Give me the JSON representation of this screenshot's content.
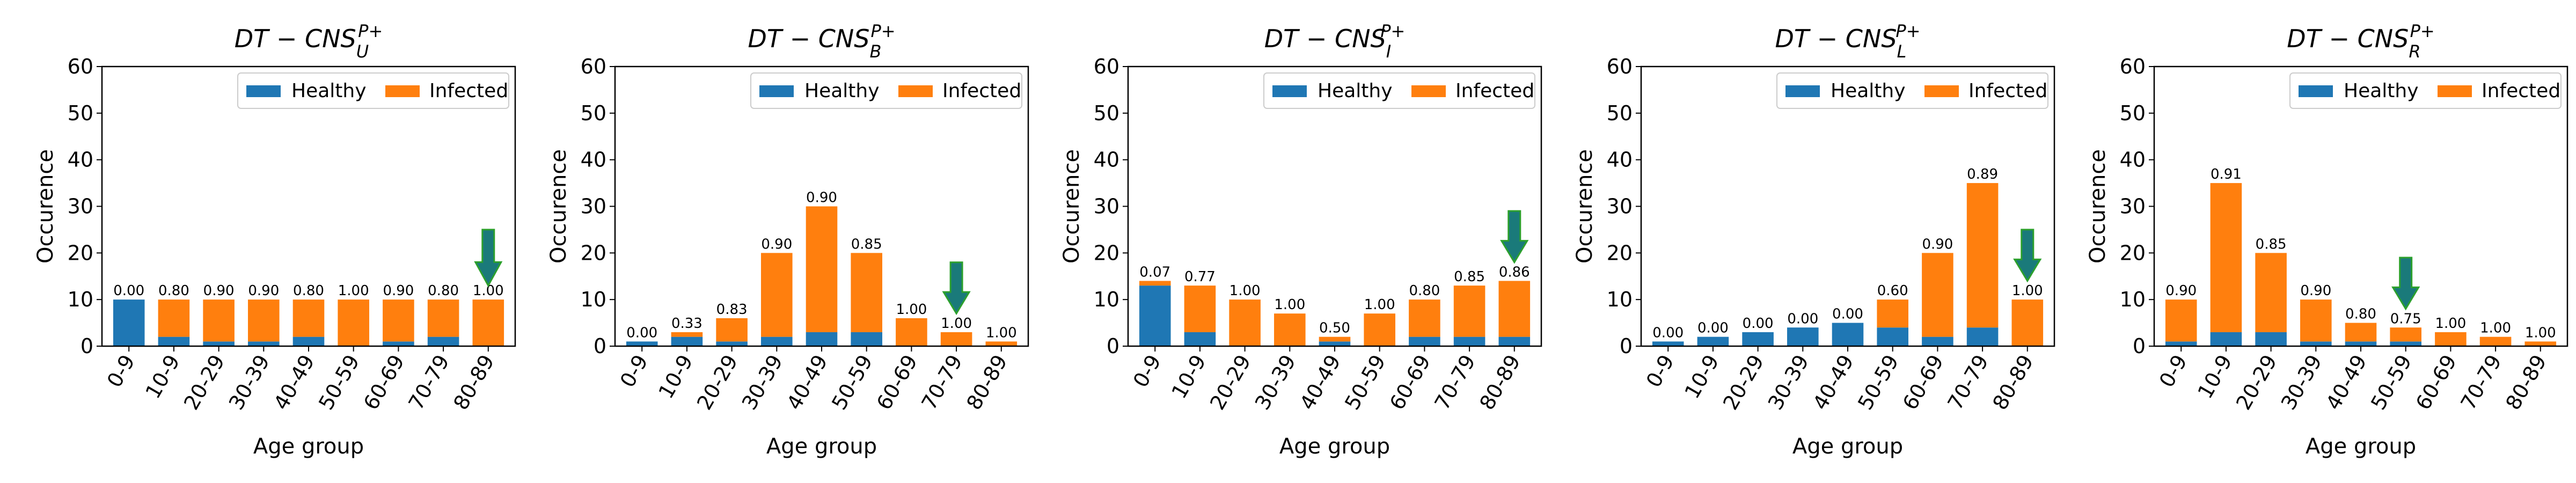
{
  "colors": {
    "healthy": "#1f77b4",
    "infected": "#ff7f0e",
    "arrow_fill": "#1a7a7a",
    "arrow_stroke": "#2ca02c"
  },
  "chart_data": [
    {
      "type": "bar",
      "stacked": true,
      "title_base": "DT − CNS",
      "title_sub": "U",
      "title_sup": "P+",
      "xlabel": "Age group",
      "ylabel": "Occurence",
      "ylim": [
        0,
        60
      ],
      "yticks": [
        0,
        10,
        20,
        30,
        40,
        50,
        60
      ],
      "legend": [
        "Healthy",
        "Infected"
      ],
      "legend_position": "top-right",
      "categories": [
        "0-9",
        "10-9",
        "20-29",
        "30-39",
        "40-49",
        "50-59",
        "60-69",
        "70-79",
        "80-89"
      ],
      "series": [
        {
          "name": "Healthy",
          "values": [
            10,
            2,
            1,
            1,
            2,
            0,
            1,
            2,
            0
          ]
        },
        {
          "name": "Infected",
          "values": [
            0,
            8,
            9,
            9,
            8,
            10,
            9,
            8,
            10
          ]
        }
      ],
      "labels": [
        "0.00",
        "0.80",
        "0.90",
        "0.90",
        "0.80",
        "1.00",
        "0.90",
        "0.80",
        "1.00"
      ],
      "annotation": {
        "type": "arrow",
        "category_index": 8,
        "from_y": 25,
        "to_y": 13
      }
    },
    {
      "type": "bar",
      "stacked": true,
      "title_base": "DT − CNS",
      "title_sub": "B",
      "title_sup": "P+",
      "xlabel": "Age group",
      "ylabel": "Occurence",
      "ylim": [
        0,
        60
      ],
      "yticks": [
        0,
        10,
        20,
        30,
        40,
        50,
        60
      ],
      "legend": [
        "Healthy",
        "Infected"
      ],
      "legend_position": "top-right",
      "categories": [
        "0-9",
        "10-9",
        "20-29",
        "30-39",
        "40-49",
        "50-59",
        "60-69",
        "70-79",
        "80-89"
      ],
      "series": [
        {
          "name": "Healthy",
          "values": [
            1,
            2,
            1,
            2,
            3,
            3,
            0,
            0,
            0
          ]
        },
        {
          "name": "Infected",
          "values": [
            0,
            1,
            5,
            18,
            27,
            17,
            6,
            3,
            1
          ]
        }
      ],
      "labels": [
        "0.00",
        "0.33",
        "0.83",
        "0.90",
        "0.90",
        "0.85",
        "1.00",
        "1.00",
        "1.00"
      ],
      "annotation": {
        "type": "arrow",
        "category_index": 7,
        "from_y": 18,
        "to_y": 7
      }
    },
    {
      "type": "bar",
      "stacked": true,
      "title_base": "DT − CNS",
      "title_sub": "I",
      "title_sup": "P+",
      "xlabel": "Age group",
      "ylabel": "Occurence",
      "ylim": [
        0,
        60
      ],
      "yticks": [
        0,
        10,
        20,
        30,
        40,
        50,
        60
      ],
      "legend": [
        "Healthy",
        "Infected"
      ],
      "legend_position": "top-right",
      "categories": [
        "0-9",
        "10-9",
        "20-29",
        "30-39",
        "40-49",
        "50-59",
        "60-69",
        "70-79",
        "80-89"
      ],
      "series": [
        {
          "name": "Healthy",
          "values": [
            13,
            3,
            0,
            0,
            1,
            0,
            2,
            2,
            2
          ]
        },
        {
          "name": "Infected",
          "values": [
            1,
            10,
            10,
            7,
            1,
            7,
            8,
            11,
            12
          ]
        }
      ],
      "labels": [
        "0.07",
        "0.77",
        "1.00",
        "1.00",
        "0.50",
        "1.00",
        "0.80",
        "0.85",
        "0.86"
      ],
      "annotation": {
        "type": "arrow",
        "category_index": 8,
        "from_y": 29,
        "to_y": 18
      }
    },
    {
      "type": "bar",
      "stacked": true,
      "title_base": "DT − CNS",
      "title_sub": "L",
      "title_sup": "P+",
      "xlabel": "Age group",
      "ylabel": "Occurence",
      "ylim": [
        0,
        60
      ],
      "yticks": [
        0,
        10,
        20,
        30,
        40,
        50,
        60
      ],
      "legend": [
        "Healthy",
        "Infected"
      ],
      "legend_position": "top-right",
      "categories": [
        "0-9",
        "10-9",
        "20-29",
        "30-39",
        "40-49",
        "50-59",
        "60-69",
        "70-79",
        "80-89"
      ],
      "series": [
        {
          "name": "Healthy",
          "values": [
            1,
            2,
            3,
            4,
            5,
            4,
            2,
            4,
            0
          ]
        },
        {
          "name": "Infected",
          "values": [
            0,
            0,
            0,
            0,
            0,
            6,
            18,
            31,
            10
          ]
        }
      ],
      "labels": [
        "0.00",
        "0.00",
        "0.00",
        "0.00",
        "0.00",
        "0.60",
        "0.90",
        "0.89",
        "1.00"
      ],
      "annotation": {
        "type": "arrow",
        "category_index": 8,
        "from_y": 25,
        "to_y": 14
      }
    },
    {
      "type": "bar",
      "stacked": true,
      "title_base": "DT − CNS",
      "title_sub": "R",
      "title_sup": "P+",
      "xlabel": "Age group",
      "ylabel": "Occurence",
      "ylim": [
        0,
        60
      ],
      "yticks": [
        0,
        10,
        20,
        30,
        40,
        50,
        60
      ],
      "legend": [
        "Healthy",
        "Infected"
      ],
      "legend_position": "top-right",
      "categories": [
        "0-9",
        "10-9",
        "20-29",
        "30-39",
        "40-49",
        "50-59",
        "60-69",
        "70-79",
        "80-89"
      ],
      "series": [
        {
          "name": "Healthy",
          "values": [
            1,
            3,
            3,
            1,
            1,
            1,
            0,
            0,
            0
          ]
        },
        {
          "name": "Infected",
          "values": [
            9,
            32,
            17,
            9,
            4,
            3,
            3,
            2,
            1
          ]
        }
      ],
      "labels": [
        "0.90",
        "0.91",
        "0.85",
        "0.90",
        "0.80",
        "0.75",
        "1.00",
        "1.00",
        "1.00"
      ],
      "annotation": {
        "type": "arrow",
        "category_index": 5,
        "from_y": 19,
        "to_y": 8
      }
    }
  ]
}
